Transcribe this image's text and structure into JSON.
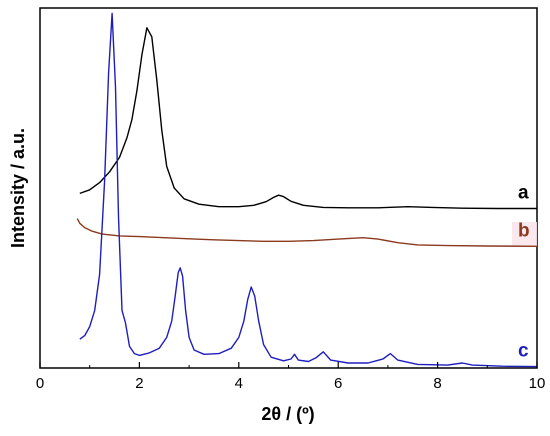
{
  "chart_data": {
    "type": "line",
    "xlabel": "2θ / (º)",
    "ylabel": "Intensity / a.u.",
    "xlim": [
      0,
      10
    ],
    "x_ticks": [
      0,
      2,
      4,
      6,
      8,
      10
    ],
    "y_ticks_labeled": false,
    "grid": false,
    "legend": "inline labels at right end of each trace",
    "series": [
      {
        "name": "a",
        "color": "#000000",
        "points": [
          [
            0.8,
            0.485
          ],
          [
            1.0,
            0.495
          ],
          [
            1.2,
            0.515
          ],
          [
            1.4,
            0.545
          ],
          [
            1.6,
            0.585
          ],
          [
            1.75,
            0.64
          ],
          [
            1.85,
            0.69
          ],
          [
            1.95,
            0.77
          ],
          [
            2.05,
            0.87
          ],
          [
            2.15,
            0.945
          ],
          [
            2.25,
            0.92
          ],
          [
            2.35,
            0.8
          ],
          [
            2.45,
            0.66
          ],
          [
            2.55,
            0.56
          ],
          [
            2.7,
            0.5
          ],
          [
            2.9,
            0.47
          ],
          [
            3.2,
            0.455
          ],
          [
            3.6,
            0.448
          ],
          [
            4.0,
            0.448
          ],
          [
            4.3,
            0.452
          ],
          [
            4.55,
            0.462
          ],
          [
            4.7,
            0.474
          ],
          [
            4.8,
            0.48
          ],
          [
            4.9,
            0.476
          ],
          [
            5.05,
            0.463
          ],
          [
            5.3,
            0.452
          ],
          [
            5.7,
            0.446
          ],
          [
            6.2,
            0.445
          ],
          [
            6.8,
            0.445
          ],
          [
            7.4,
            0.448
          ],
          [
            7.9,
            0.446
          ],
          [
            8.5,
            0.444
          ],
          [
            9.2,
            0.443
          ],
          [
            10.0,
            0.443
          ]
        ]
      },
      {
        "name": "b",
        "color": "#8b3a1e",
        "points": [
          [
            0.75,
            0.415
          ],
          [
            0.8,
            0.402
          ],
          [
            0.9,
            0.39
          ],
          [
            1.05,
            0.38
          ],
          [
            1.25,
            0.372
          ],
          [
            1.6,
            0.367
          ],
          [
            2.0,
            0.365
          ],
          [
            2.5,
            0.362
          ],
          [
            3.0,
            0.359
          ],
          [
            3.5,
            0.356
          ],
          [
            4.0,
            0.354
          ],
          [
            4.5,
            0.352
          ],
          [
            5.0,
            0.352
          ],
          [
            5.5,
            0.354
          ],
          [
            6.0,
            0.358
          ],
          [
            6.5,
            0.362
          ],
          [
            6.8,
            0.358
          ],
          [
            7.2,
            0.348
          ],
          [
            7.6,
            0.342
          ],
          [
            8.2,
            0.34
          ],
          [
            9.0,
            0.339
          ],
          [
            10.0,
            0.338
          ]
        ]
      },
      {
        "name": "c",
        "color": "#1e1ebe",
        "points": [
          [
            0.8,
            0.08
          ],
          [
            0.9,
            0.09
          ],
          [
            1.0,
            0.115
          ],
          [
            1.1,
            0.16
          ],
          [
            1.2,
            0.26
          ],
          [
            1.3,
            0.52
          ],
          [
            1.38,
            0.82
          ],
          [
            1.45,
            0.985
          ],
          [
            1.52,
            0.78
          ],
          [
            1.58,
            0.42
          ],
          [
            1.65,
            0.16
          ],
          [
            1.72,
            0.125
          ],
          [
            1.8,
            0.06
          ],
          [
            1.9,
            0.04
          ],
          [
            2.0,
            0.035
          ],
          [
            2.2,
            0.042
          ],
          [
            2.4,
            0.055
          ],
          [
            2.55,
            0.085
          ],
          [
            2.65,
            0.13
          ],
          [
            2.72,
            0.2
          ],
          [
            2.78,
            0.265
          ],
          [
            2.82,
            0.278
          ],
          [
            2.87,
            0.255
          ],
          [
            2.93,
            0.16
          ],
          [
            3.0,
            0.085
          ],
          [
            3.1,
            0.05
          ],
          [
            3.3,
            0.038
          ],
          [
            3.6,
            0.04
          ],
          [
            3.85,
            0.055
          ],
          [
            4.0,
            0.085
          ],
          [
            4.1,
            0.13
          ],
          [
            4.18,
            0.19
          ],
          [
            4.25,
            0.225
          ],
          [
            4.32,
            0.2
          ],
          [
            4.4,
            0.13
          ],
          [
            4.5,
            0.065
          ],
          [
            4.65,
            0.03
          ],
          [
            4.9,
            0.02
          ],
          [
            5.05,
            0.025
          ],
          [
            5.12,
            0.038
          ],
          [
            5.2,
            0.022
          ],
          [
            5.4,
            0.018
          ],
          [
            5.55,
            0.028
          ],
          [
            5.7,
            0.045
          ],
          [
            5.85,
            0.022
          ],
          [
            6.2,
            0.014
          ],
          [
            6.6,
            0.014
          ],
          [
            6.9,
            0.025
          ],
          [
            7.05,
            0.04
          ],
          [
            7.2,
            0.022
          ],
          [
            7.6,
            0.01
          ],
          [
            8.2,
            0.008
          ],
          [
            8.5,
            0.014
          ],
          [
            8.7,
            0.008
          ],
          [
            9.3,
            0.005
          ],
          [
            10.0,
            0.004
          ]
        ]
      }
    ]
  }
}
